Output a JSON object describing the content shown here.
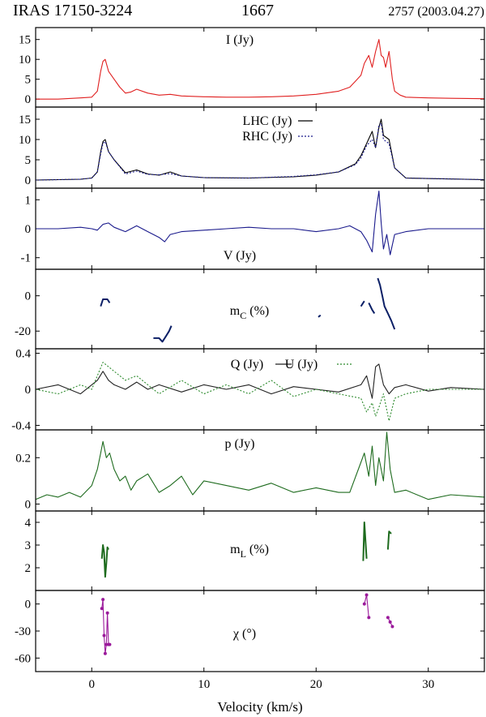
{
  "header": {
    "object": "IRAS 17150-3224",
    "line": "1667",
    "epoch": "2757 (2003.04.27)"
  },
  "colors": {
    "I": "#e02020",
    "LHC": "#000000",
    "RHC": "#1a1a8c",
    "V": "#1a1a8c",
    "mC": "#0b1f66",
    "Q": "#222222",
    "U": "#2e8b2e",
    "p": "#1e6b1e",
    "mL": "#1e6b1e",
    "chi": "#9b1a9b"
  },
  "chart_data": {
    "type": "line",
    "xlabel": "Velocity (km/s)",
    "xlim": [
      -5,
      35
    ],
    "xticks": [
      "0",
      "10",
      "20",
      "30"
    ],
    "panels": [
      {
        "id": "I",
        "label": "I (Jy)",
        "ylim": [
          -2,
          18
        ],
        "yticks": [
          "0",
          "5",
          "10",
          "15"
        ],
        "series": [
          {
            "name": "I (Jy)",
            "x": [
              -5,
              -3,
              -1,
              0,
              0.5,
              0.8,
              1.0,
              1.2,
              1.5,
              2,
              2.5,
              3,
              3.5,
              4,
              5,
              6,
              7,
              8,
              10,
              12,
              14,
              16,
              18,
              20,
              22,
              23,
              23.5,
              24,
              24.3,
              24.7,
              25,
              25.3,
              25.6,
              25.8,
              26,
              26.2,
              26.5,
              26.8,
              27,
              27.5,
              28,
              30,
              32,
              35
            ],
            "y": [
              0,
              0,
              0.3,
              0.5,
              2,
              7,
              9.5,
              10,
              7,
              5,
              3,
              1.5,
              1.8,
              2.5,
              1.5,
              1,
              1.2,
              0.8,
              0.6,
              0.5,
              0.5,
              0.6,
              0.8,
              1.2,
              2,
              3,
              4.5,
              6,
              9,
              11,
              8,
              12,
              15,
              11,
              10.5,
              8,
              12,
              5,
              2,
              1,
              0.5,
              0.3,
              0.2,
              0.1
            ]
          }
        ]
      },
      {
        "id": "LR",
        "ylim": [
          -2,
          18
        ],
        "yticks": [
          "0",
          "5",
          "10",
          "15"
        ],
        "series": [
          {
            "name": "LHC (Jy)",
            "x": [
              -5,
              -1,
              0,
              0.5,
              0.8,
              1.0,
              1.2,
              1.5,
              2,
              3,
              4,
              5,
              6,
              7,
              8,
              10,
              14,
              18,
              20,
              22,
              23.5,
              24,
              24.5,
              25,
              25.3,
              25.6,
              25.8,
              26,
              26.5,
              27,
              28,
              35
            ],
            "y": [
              0,
              0.2,
              0.5,
              2,
              7,
              9.5,
              10,
              7,
              5,
              1.8,
              2.5,
              1.5,
              1.2,
              2,
              1,
              0.6,
              0.5,
              0.8,
              1.2,
              2,
              4,
              6,
              9,
              12,
              8,
              13,
              15,
              11,
              10,
              3,
              0.5,
              0.1
            ]
          },
          {
            "name": "RHC (Jy)",
            "x": [
              -5,
              -1,
              0,
              0.5,
              0.8,
              1.0,
              1.2,
              1.5,
              2,
              3,
              4,
              5,
              6,
              7,
              8,
              10,
              14,
              18,
              20,
              22,
              23.5,
              24,
              24.5,
              25,
              25.3,
              25.6,
              25.8,
              26,
              26.5,
              27,
              28,
              35
            ],
            "y": [
              0,
              0.2,
              0.5,
              2,
              6.5,
              9,
              9.5,
              7,
              5,
              1.5,
              2.2,
              1.4,
              1.3,
              1.6,
              1,
              0.6,
              0.5,
              0.9,
              1.3,
              2,
              3.8,
              5.5,
              8.5,
              10,
              8,
              13.5,
              14,
              10,
              9,
              3,
              0.5,
              0.1
            ]
          }
        ],
        "legend": [
          "LHC (Jy)",
          "RHC (Jy)"
        ]
      },
      {
        "id": "V",
        "label": "V (Jy)",
        "ylim": [
          -1.4,
          1.4
        ],
        "yticks": [
          "1",
          "0",
          "-1"
        ],
        "series": [
          {
            "name": "V (Jy)",
            "x": [
              -5,
              -3,
              -1,
              0,
              0.5,
              1,
              1.5,
              2,
              3,
              4,
              5,
              6,
              6.5,
              7,
              8,
              10,
              12,
              14,
              16,
              18,
              20,
              22,
              23,
              24,
              24.5,
              25,
              25.3,
              25.6,
              25.8,
              26,
              26.3,
              26.6,
              27,
              28,
              30,
              35
            ],
            "y": [
              0,
              0,
              0.05,
              0,
              -0.05,
              0.15,
              0.2,
              0.05,
              -0.1,
              0.1,
              -0.1,
              -0.3,
              -0.45,
              -0.2,
              -0.1,
              -0.05,
              0,
              0.05,
              0,
              0,
              -0.1,
              0,
              0.1,
              -0.1,
              -0.4,
              -0.8,
              0.5,
              1.3,
              0.2,
              -0.7,
              -0.2,
              -0.9,
              -0.2,
              -0.1,
              0,
              0
            ]
          }
        ]
      },
      {
        "id": "mC",
        "label": "mC (%)",
        "ylim": [
          -30,
          15
        ],
        "yticks": [
          "0",
          "-20"
        ],
        "series": [
          {
            "name": "mC",
            "x": [
              0.8,
              1.0,
              1.4,
              1.6
            ],
            "y": [
              -6,
              -2,
              -2,
              -4
            ]
          },
          {
            "name": "mC",
            "x": [
              5.5,
              6,
              6.3,
              6.6,
              6.9,
              7.1
            ],
            "y": [
              -24,
              -24,
              -26,
              -23,
              -20,
              -17
            ]
          },
          {
            "name": "mC",
            "x": [
              20.2,
              20.4
            ],
            "y": [
              -12,
              -11
            ]
          },
          {
            "name": "mC",
            "x": [
              24,
              24.3
            ],
            "y": [
              -6,
              -3
            ]
          },
          {
            "name": "mC",
            "x": [
              24.7,
              25.0,
              25.2
            ],
            "y": [
              -4,
              -8,
              -10
            ]
          },
          {
            "name": "mC",
            "x": [
              25.5,
              25.7,
              25.9,
              26.1,
              26.4,
              26.7,
              27
            ],
            "y": [
              10,
              6,
              0,
              -6,
              -10,
              -14,
              -19
            ]
          }
        ]
      },
      {
        "id": "QU",
        "ylim": [
          -0.45,
          0.45
        ],
        "yticks": [
          "0.4",
          "0",
          "-0.4"
        ],
        "series": [
          {
            "name": "Q (Jy)",
            "x": [
              -5,
              -3,
              -1,
              0,
              0.5,
              1,
              1.5,
              2,
              3,
              4,
              5,
              6,
              8,
              10,
              12,
              14,
              16,
              18,
              20,
              22,
              24,
              24.5,
              25,
              25.3,
              25.6,
              26,
              26.5,
              27,
              28,
              30,
              32,
              35
            ],
            "y": [
              0,
              0.05,
              -0.05,
              0.05,
              0.1,
              0.2,
              0.1,
              0.05,
              0,
              0.08,
              0,
              0.05,
              -0.03,
              0.05,
              0,
              0.05,
              -0.05,
              0.03,
              0,
              -0.03,
              0.05,
              0.15,
              -0.1,
              0.25,
              0.28,
              0.05,
              -0.05,
              0.02,
              0.05,
              -0.02,
              0.02,
              0
            ]
          },
          {
            "name": "U (Jy)",
            "x": [
              -5,
              -3,
              -1,
              0,
              0.5,
              1,
              1.5,
              2,
              3,
              4,
              5,
              6,
              8,
              10,
              12,
              14,
              16,
              18,
              20,
              22,
              24,
              24.5,
              25,
              25.3,
              25.6,
              26,
              26.5,
              27,
              28,
              30,
              32,
              35
            ],
            "y": [
              0,
              -0.05,
              0.05,
              0,
              0.15,
              0.3,
              0.25,
              0.2,
              0.1,
              0.15,
              0.05,
              -0.05,
              0.1,
              -0.05,
              0.05,
              -0.05,
              0.1,
              -0.08,
              0,
              -0.05,
              -0.1,
              -0.25,
              -0.15,
              -0.3,
              -0.2,
              -0.05,
              -0.35,
              -0.1,
              -0.05,
              0,
              0,
              0
            ]
          }
        ],
        "legend": [
          "Q (Jy)",
          "U (Jy)"
        ]
      },
      {
        "id": "p",
        "label": "p (Jy)",
        "ylim": [
          -0.03,
          0.32
        ],
        "yticks": [
          "0.2",
          "0"
        ],
        "series": [
          {
            "name": "p (Jy)",
            "x": [
              -5,
              -4,
              -3,
              -2,
              -1,
              0,
              0.5,
              0.8,
              1,
              1.3,
              1.6,
              2,
              2.5,
              3,
              3.5,
              4,
              5,
              6,
              7,
              8,
              9,
              10,
              12,
              14,
              16,
              18,
              20,
              22,
              23,
              24,
              24.3,
              24.7,
              25,
              25.3,
              25.6,
              26,
              26.3,
              26.6,
              27,
              28,
              30,
              32,
              35
            ],
            "y": [
              0.02,
              0.04,
              0.03,
              0.05,
              0.03,
              0.08,
              0.15,
              0.22,
              0.27,
              0.2,
              0.22,
              0.15,
              0.1,
              0.12,
              0.06,
              0.1,
              0.13,
              0.05,
              0.08,
              0.12,
              0.04,
              0.1,
              0.08,
              0.06,
              0.09,
              0.05,
              0.07,
              0.05,
              0.05,
              0.18,
              0.22,
              0.12,
              0.25,
              0.08,
              0.2,
              0.1,
              0.31,
              0.15,
              0.05,
              0.06,
              0.02,
              0.04,
              0.03
            ]
          }
        ]
      },
      {
        "id": "mL",
        "label": "mL (%)",
        "ylim": [
          1,
          4.5
        ],
        "yticks": [
          "4",
          "3",
          "2"
        ],
        "series": [
          {
            "name": "mL",
            "x": [
              0.9,
              1.0,
              1.1,
              1.2,
              1.3,
              1.4,
              1.5
            ],
            "y": [
              2.4,
              3.0,
              2.7,
              1.6,
              2.2,
              2.9,
              2.8
            ]
          },
          {
            "name": "mL",
            "x": [
              24.2,
              24.3,
              24.4,
              24.5
            ],
            "y": [
              2.3,
              4.0,
              3.2,
              2.4
            ]
          },
          {
            "name": "mL",
            "x": [
              26.4,
              26.5,
              26.7
            ],
            "y": [
              2.8,
              3.6,
              3.5
            ]
          }
        ]
      },
      {
        "id": "chi",
        "label": "χ (°)",
        "ylim": [
          -75,
          15
        ],
        "yticks": [
          "0",
          "-30",
          "-60"
        ],
        "series": [
          {
            "name": "χ",
            "x": [
              0.9,
              1.0,
              1.1,
              1.2,
              1.3,
              1.4,
              1.5,
              1.6
            ],
            "y": [
              -5,
              5,
              -35,
              -55,
              -45,
              -10,
              -45,
              -45
            ]
          },
          {
            "name": "χ",
            "x": [
              24.3,
              24.5,
              24.7
            ],
            "y": [
              0,
              10,
              -15
            ]
          },
          {
            "name": "χ",
            "x": [
              26.4,
              26.6,
              26.8
            ],
            "y": [
              -15,
              -20,
              -25
            ]
          }
        ]
      }
    ]
  }
}
